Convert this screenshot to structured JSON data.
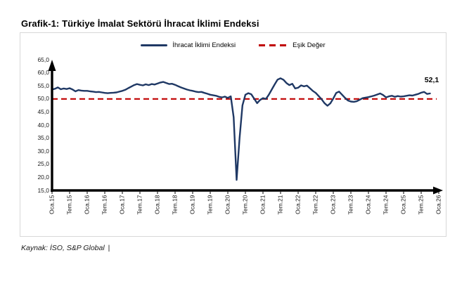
{
  "page": {
    "title": "Grafik-1: Türkiye İmalat Sektörü İhracat İklimi Endeksi"
  },
  "footer": {
    "source_text": "Kaynak: İSO, S&P Global",
    "cursor": "|"
  },
  "colors": {
    "series": "#1F3864",
    "threshold": "#C00000",
    "axis": "#000000",
    "box_border": "#D8D8D8"
  },
  "chart_data": {
    "type": "line",
    "title": "Grafik-1: Türkiye İmalat Sektörü İhracat İklimi Endeksi",
    "legend_position": "top-center",
    "grid": false,
    "ylim": [
      15,
      65
    ],
    "y_step": 5,
    "y_tick_labels": [
      "65,0",
      "60,0",
      "55,0",
      "50,0",
      "45,0",
      "40,0",
      "35,0",
      "30,0",
      "25,0",
      "20,0",
      "15,0"
    ],
    "y_tick_values": [
      65,
      60,
      55,
      50,
      45,
      40,
      35,
      30,
      25,
      20,
      15
    ],
    "x_tick_labels": [
      "Oca.15",
      "Tem.15",
      "Oca.16",
      "Tem.16",
      "Oca.17",
      "Tem.17",
      "Oca.18",
      "Tem.18",
      "Oca.19",
      "Tem.19",
      "Oca.20",
      "Tem.20",
      "Oca.21",
      "Tem.21",
      "Oca.22",
      "Tem.22",
      "Oca.23",
      "Tem.23",
      "Oca.24",
      "Tem.24",
      "Oca.25",
      "Tem.25",
      "Oca.26"
    ],
    "x_tick_step_months": 6,
    "x_total_months": 132,
    "threshold": {
      "name": "Eşik Değer",
      "value": 50
    },
    "last_value_label": "52,1",
    "legend": [
      {
        "name": "İhracat İklimi Endeksi",
        "color": "#1F3864",
        "style": "solid"
      },
      {
        "name": "Eşik Değer",
        "color": "#C00000",
        "style": "dashed"
      }
    ],
    "series": [
      {
        "name": "İhracat İklimi Endeksi",
        "start_label": "Oca.15",
        "frequency": "monthly",
        "values": [
          53.6,
          53.9,
          54.4,
          53.7,
          54.0,
          53.8,
          54.1,
          53.6,
          52.9,
          53.4,
          53.2,
          53.1,
          53.1,
          52.9,
          52.8,
          52.6,
          52.7,
          52.5,
          52.3,
          52.2,
          52.3,
          52.4,
          52.5,
          52.8,
          53.1,
          53.5,
          54.1,
          54.7,
          55.3,
          55.7,
          55.4,
          55.2,
          55.6,
          55.3,
          55.7,
          55.5,
          55.9,
          56.3,
          56.5,
          56.1,
          55.7,
          55.8,
          55.4,
          54.9,
          54.4,
          54.0,
          53.6,
          53.3,
          53.1,
          52.8,
          52.6,
          52.7,
          52.3,
          52.0,
          51.6,
          51.4,
          51.2,
          50.8,
          50.6,
          50.9,
          50.4,
          51.0,
          43.0,
          19.0,
          35.0,
          47.5,
          51.6,
          52.2,
          51.8,
          50.1,
          48.4,
          49.6,
          50.3,
          50.0,
          51.6,
          53.6,
          55.6,
          57.4,
          57.9,
          57.3,
          56.1,
          55.3,
          55.8,
          54.0,
          54.3,
          55.2,
          54.8,
          55.1,
          54.1,
          53.1,
          52.3,
          51.1,
          49.9,
          48.4,
          47.4,
          48.3,
          50.2,
          52.3,
          52.8,
          51.6,
          50.4,
          49.4,
          49.0,
          48.9,
          49.1,
          49.7,
          50.3,
          50.5,
          50.7,
          51.0,
          51.3,
          51.7,
          52.1,
          51.5,
          50.6,
          51.0,
          51.2,
          50.8,
          51.1,
          50.9,
          51.0,
          51.2,
          51.4,
          51.3,
          51.6,
          51.9,
          52.4,
          52.7,
          51.9,
          52.1
        ]
      }
    ]
  }
}
